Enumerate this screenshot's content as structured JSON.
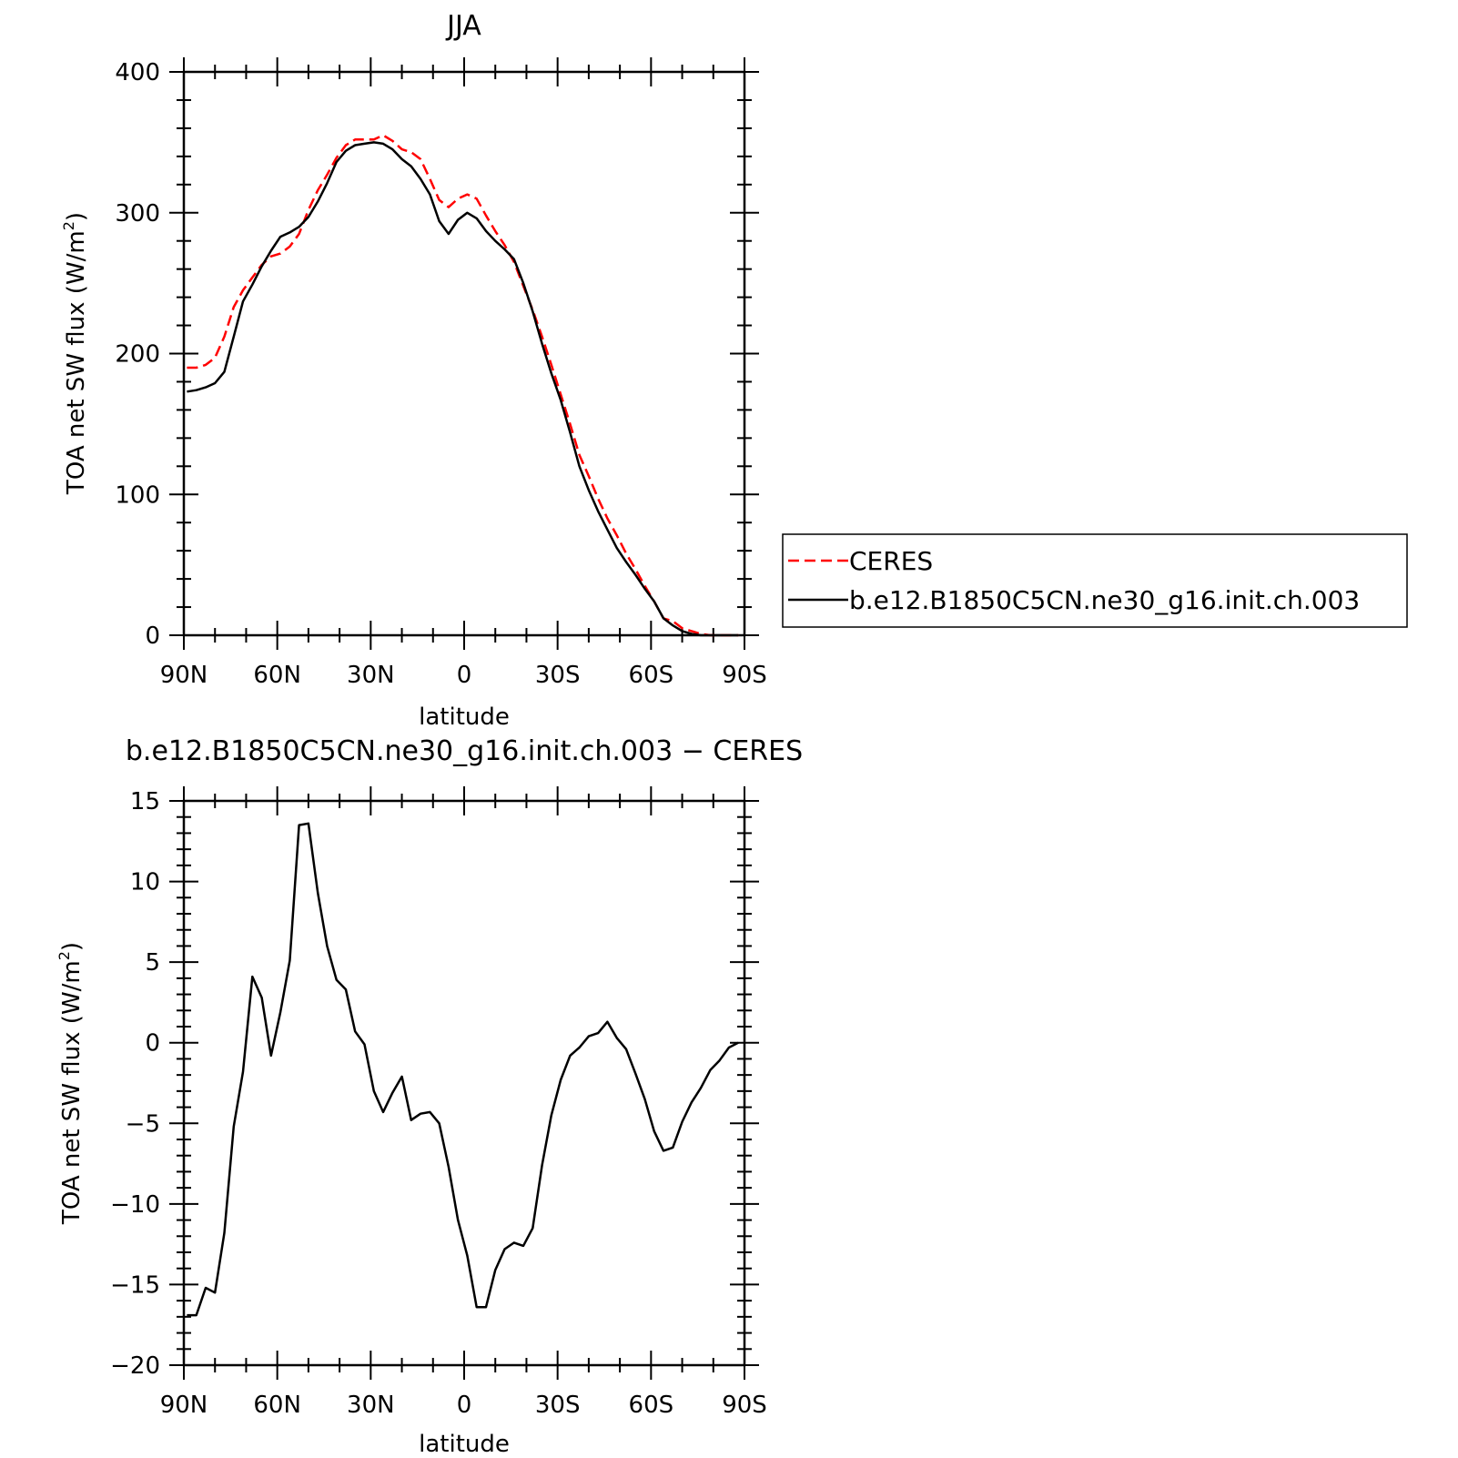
{
  "chart_data": [
    {
      "type": "line",
      "title": "JJA",
      "xlabel": "latitude",
      "ylabel": "TOA net SW flux (W/m",
      "ylabel_sup": "2",
      "ylabel_end": ")",
      "xlim": [
        90,
        -90
      ],
      "ylim": [
        0,
        400
      ],
      "xticks": [
        90,
        60,
        30,
        0,
        -30,
        -60,
        -90
      ],
      "xtick_labels": [
        "90N",
        "60N",
        "30N",
        "0",
        "30S",
        "60S",
        "90S"
      ],
      "yticks": [
        0,
        100,
        200,
        300,
        400
      ],
      "ytick_labels": [
        "0",
        "100",
        "200",
        "300",
        "400"
      ],
      "legend": "right",
      "series": [
        {
          "name": "CERES",
          "color": "#ff0000",
          "dash": true,
          "x": [
            89,
            86,
            83,
            80,
            77,
            74,
            71,
            68,
            65,
            62,
            59,
            56,
            53,
            50,
            47,
            44,
            41,
            38,
            35,
            32,
            29,
            26,
            23,
            20,
            17,
            14,
            11,
            8,
            5,
            2,
            -1,
            -4,
            -7,
            -10,
            -13,
            -16,
            -19,
            -22,
            -25,
            -28,
            -31,
            -34,
            -37,
            -40,
            -43,
            -46,
            -49,
            -52,
            -55,
            -58,
            -61,
            -64,
            -67,
            -70,
            -73,
            -76,
            -79,
            -82,
            -85,
            -88
          ],
          "y": [
            190,
            190,
            192,
            197,
            212,
            233,
            245,
            254,
            263,
            269,
            271,
            276,
            285,
            302,
            316,
            327,
            339,
            348,
            352,
            352,
            352,
            355,
            351,
            345,
            343,
            338,
            324,
            309,
            304,
            310,
            313,
            310,
            298,
            287,
            277,
            265,
            248,
            231,
            212,
            192,
            171,
            150,
            128,
            113,
            97,
            83,
            71,
            58,
            47,
            35,
            24,
            12,
            10,
            5,
            3,
            1,
            0,
            0,
            0,
            0
          ]
        },
        {
          "name": "b.e12.B1850C5CN.ne30_g16.init.ch.003",
          "color": "#000000",
          "dash": false,
          "x": [
            89,
            86,
            83,
            80,
            77,
            74,
            71,
            68,
            65,
            62,
            59,
            56,
            53,
            50,
            47,
            44,
            41,
            38,
            35,
            32,
            29,
            26,
            23,
            20,
            17,
            14,
            11,
            8,
            5,
            2,
            -1,
            -4,
            -7,
            -10,
            -13,
            -16,
            -19,
            -22,
            -25,
            -28,
            -31,
            -34,
            -37,
            -40,
            -43,
            -46,
            -49,
            -52,
            -55,
            -58,
            -61,
            -64,
            -67,
            -70,
            -73,
            -76,
            -79,
            -82,
            -85,
            -88
          ],
          "y": [
            173,
            174,
            176,
            179,
            187,
            212,
            237,
            249,
            262,
            273,
            283,
            286,
            290,
            297,
            308,
            321,
            336,
            344,
            348,
            349,
            350,
            349,
            345,
            338,
            333,
            324,
            313,
            294,
            285,
            295,
            300,
            296,
            287,
            280,
            274,
            267,
            250,
            230,
            207,
            186,
            167,
            144,
            120,
            103,
            88,
            75,
            62,
            52,
            43,
            33,
            24,
            12,
            7,
            3,
            1,
            0,
            0,
            0,
            0,
            0
          ]
        }
      ]
    },
    {
      "type": "line",
      "title": "b.e12.B1850C5CN.ne30_g16.init.ch.003 − CERES",
      "xlabel": "latitude",
      "ylabel": "TOA net SW flux (W/m",
      "ylabel_sup": "2",
      "ylabel_end": ")",
      "xlim": [
        90,
        -90
      ],
      "ylim": [
        -20,
        15
      ],
      "xticks": [
        90,
        60,
        30,
        0,
        -30,
        -60,
        -90
      ],
      "xtick_labels": [
        "90N",
        "60N",
        "30N",
        "0",
        "30S",
        "60S",
        "90S"
      ],
      "yticks": [
        15,
        10,
        5,
        0,
        -5,
        -10,
        -15,
        -20
      ],
      "ytick_labels": [
        "15",
        "10",
        "5",
        "0",
        "−5",
        "−10",
        "−15",
        "−20"
      ],
      "series": [
        {
          "name": "",
          "color": "#000000",
          "dash": false,
          "x": [
            89,
            86,
            83,
            80,
            77,
            74,
            71,
            68,
            65,
            62,
            59,
            56,
            53,
            50,
            47,
            44,
            41,
            38,
            35,
            32,
            29,
            26,
            23,
            20,
            17,
            14,
            11,
            8,
            5,
            2,
            -1,
            -4,
            -7,
            -10,
            -13,
            -16,
            -19,
            -22,
            -25,
            -28,
            -31,
            -34,
            -37,
            -40,
            -43,
            -46,
            -49,
            -52,
            -55,
            -58,
            -61,
            -64,
            -67,
            -70,
            -73,
            -76,
            -79,
            -82,
            -85,
            -88
          ],
          "y": [
            -16.9,
            -16.9,
            -15.2,
            -15.5,
            -11.8,
            -5.2,
            -1.8,
            4.1,
            2.8,
            -0.8,
            1.9,
            5.1,
            13.5,
            13.6,
            9.3,
            6.0,
            3.9,
            3.3,
            0.7,
            -0.1,
            -3.0,
            -4.3,
            -3.1,
            -2.1,
            -4.8,
            -4.4,
            -4.3,
            -5.0,
            -7.7,
            -11.0,
            -13.2,
            -16.4,
            -16.4,
            -14.1,
            -12.8,
            -12.4,
            -12.6,
            -11.5,
            -7.6,
            -4.5,
            -2.3,
            -0.8,
            -0.3,
            0.4,
            0.6,
            1.3,
            0.3,
            -0.4,
            -1.9,
            -3.5,
            -5.5,
            -6.7,
            -6.5,
            -4.9,
            -3.7,
            -2.8,
            -1.7,
            -1.1,
            -0.3,
            0
          ]
        }
      ]
    }
  ]
}
